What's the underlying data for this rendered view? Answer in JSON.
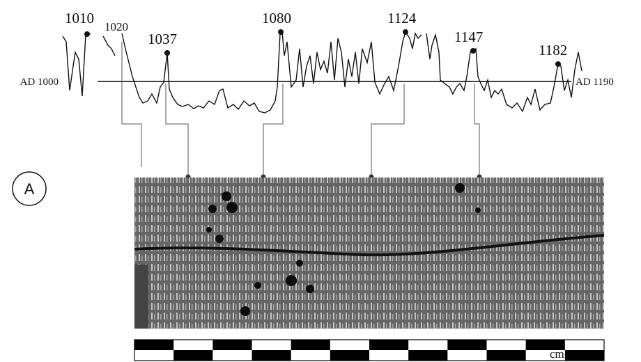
{
  "chronology": {
    "start_label": "AD 1000",
    "end_label": "AD 1190",
    "year_labels": [
      "1010",
      "1020",
      "1037",
      "1080",
      "1124",
      "1147",
      "1182"
    ]
  },
  "panel_label": "A",
  "scale_bar": {
    "unit": "cm"
  }
}
